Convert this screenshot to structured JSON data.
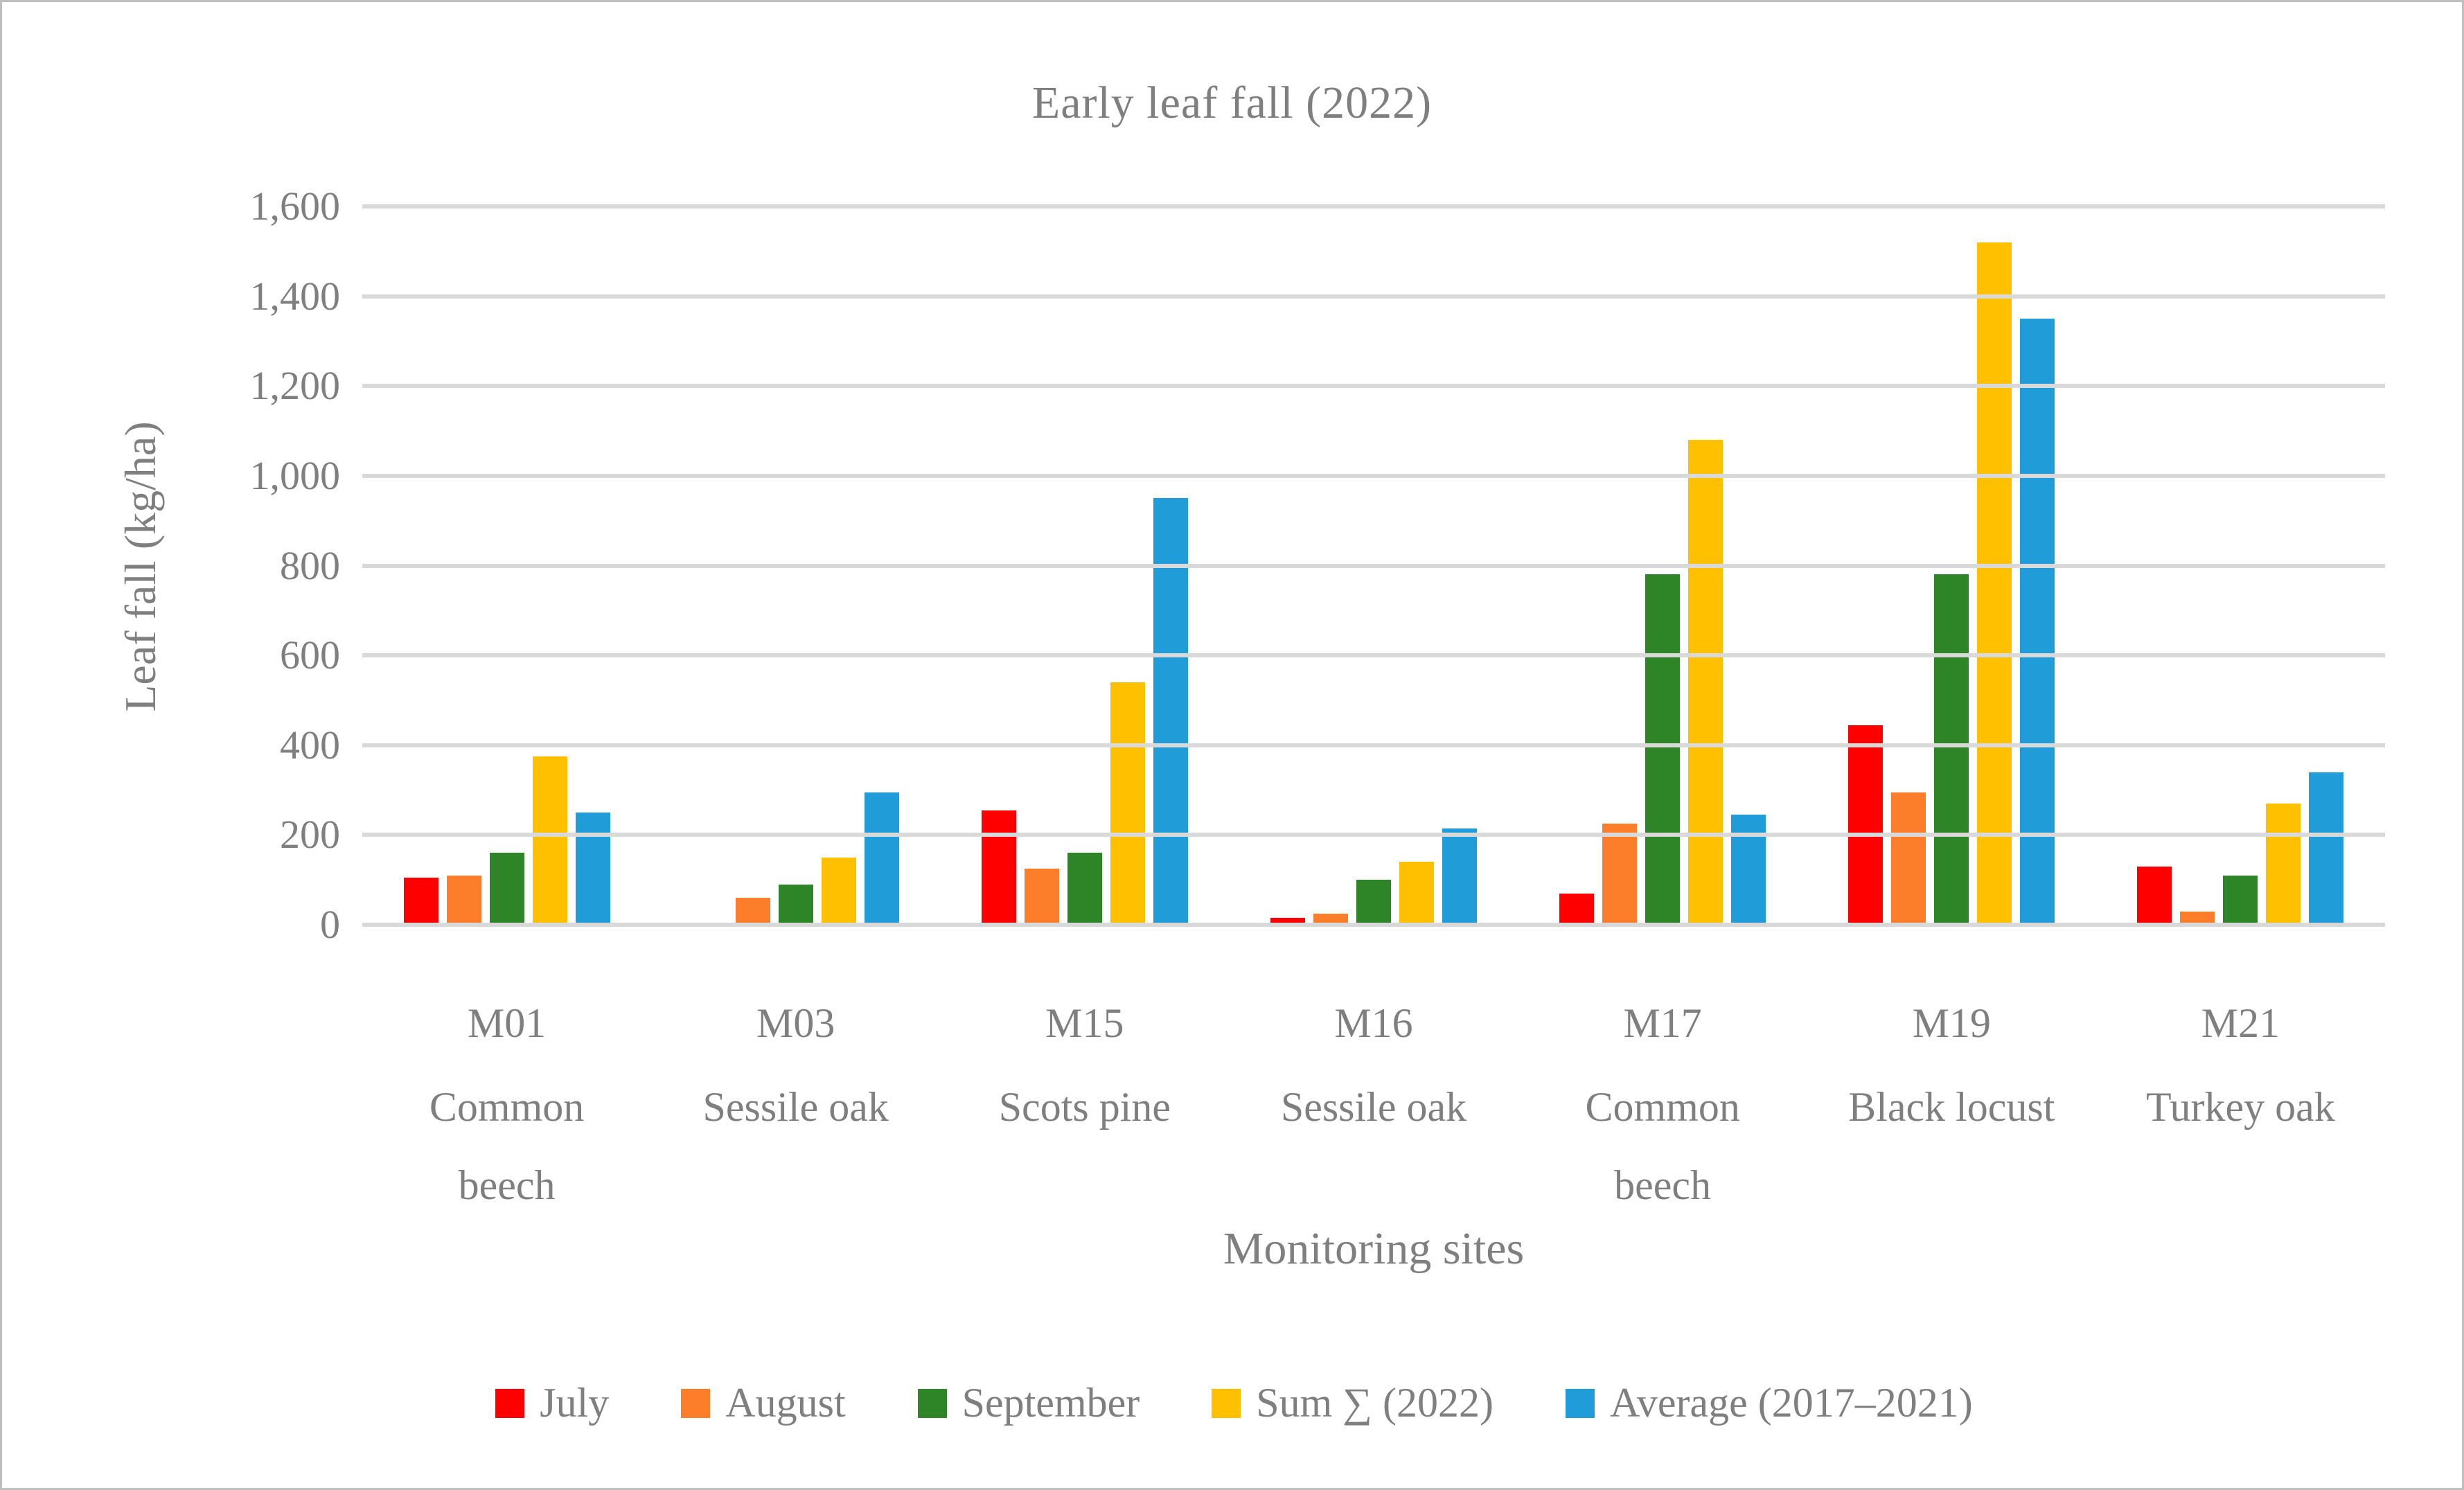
{
  "chart_data": {
    "type": "bar",
    "title": "Early leaf fall (2022)",
    "xlabel": "Monitoring sites",
    "ylabel": "Leaf fall (kg/ha)",
    "ylim": [
      0,
      1600
    ],
    "ytick_step": 200,
    "ytick_labels": [
      "0",
      "200",
      "400",
      "600",
      "800",
      "1,000",
      "1,200",
      "1,400",
      "1,600"
    ],
    "grid": true,
    "legend_position": "bottom",
    "gridline_color": "#d9d9d9",
    "text_color": "#7f7f7f",
    "categories": [
      {
        "code": "M01",
        "species_lines": [
          "Common",
          "beech"
        ]
      },
      {
        "code": "M03",
        "species_lines": [
          "Sessile oak"
        ]
      },
      {
        "code": "M15",
        "species_lines": [
          "Scots pine"
        ]
      },
      {
        "code": "M16",
        "species_lines": [
          "Sessile oak"
        ]
      },
      {
        "code": "M17",
        "species_lines": [
          "Common",
          "beech"
        ]
      },
      {
        "code": "M19",
        "species_lines": [
          "Black locust"
        ]
      },
      {
        "code": "M21",
        "species_lines": [
          "Turkey oak"
        ]
      }
    ],
    "series": [
      {
        "name": "July",
        "color": "#fe0000",
        "values": [
          105,
          0,
          255,
          15,
          70,
          445,
          130
        ]
      },
      {
        "name": "August",
        "color": "#fd7e2a",
        "values": [
          110,
          60,
          125,
          25,
          225,
          295,
          30
        ]
      },
      {
        "name": "September",
        "color": "#2e8528",
        "values": [
          160,
          90,
          160,
          100,
          780,
          780,
          110
        ]
      },
      {
        "name": "Sum ∑ (2022)",
        "color": "#ffc000",
        "values": [
          375,
          150,
          540,
          140,
          1080,
          1520,
          270
        ]
      },
      {
        "name": "Average (2017–2021)",
        "color": "#209dd8",
        "values": [
          250,
          295,
          950,
          215,
          245,
          1350,
          340
        ]
      }
    ]
  }
}
